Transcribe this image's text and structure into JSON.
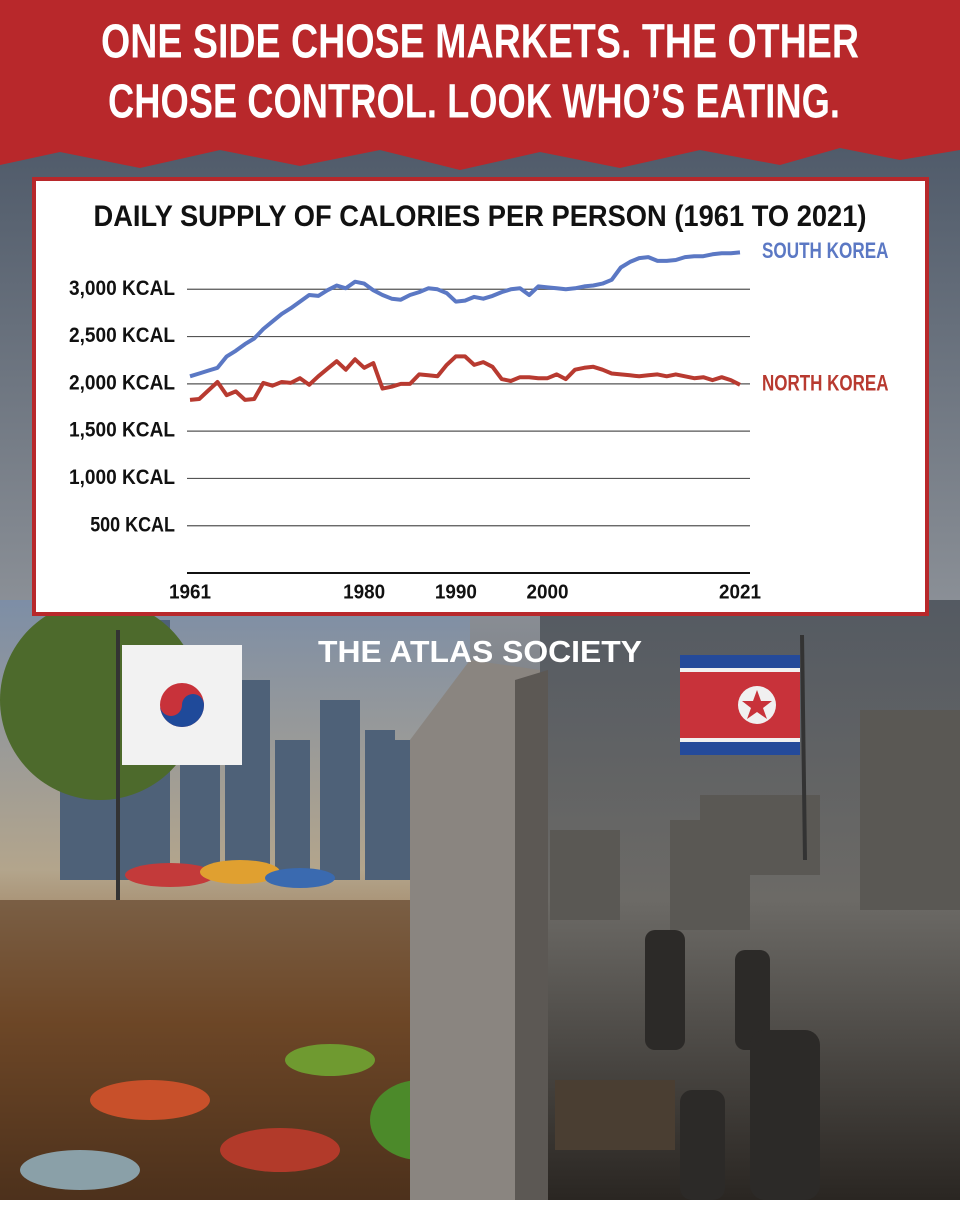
{
  "headline": [
    "ONE SIDE CHOSE MARKETS. THE OTHER",
    "CHOSE CONTROL. LOOK WHO’S EATING."
  ],
  "brand": "THE ATLAS SOCIETY",
  "chart_data": {
    "type": "line",
    "title": "DAILY SUPPLY OF CALORIES PER PERSON (1961 TO 2021)",
    "x": [
      1961,
      1962,
      1963,
      1964,
      1965,
      1966,
      1967,
      1968,
      1969,
      1970,
      1971,
      1972,
      1973,
      1974,
      1975,
      1976,
      1977,
      1978,
      1979,
      1980,
      1981,
      1982,
      1983,
      1984,
      1985,
      1986,
      1987,
      1988,
      1989,
      1990,
      1991,
      1992,
      1993,
      1994,
      1995,
      1996,
      1997,
      1998,
      1999,
      2000,
      2001,
      2002,
      2003,
      2004,
      2005,
      2006,
      2007,
      2008,
      2009,
      2010,
      2011,
      2012,
      2013,
      2014,
      2015,
      2016,
      2017,
      2018,
      2019,
      2020,
      2021
    ],
    "series": [
      {
        "name": "SOUTH KOREA",
        "color": "#5b78c4",
        "values": [
          2080,
          2110,
          2140,
          2170,
          2290,
          2350,
          2420,
          2480,
          2580,
          2660,
          2740,
          2800,
          2870,
          2940,
          2930,
          2990,
          3040,
          3010,
          3080,
          3060,
          2990,
          2940,
          2900,
          2890,
          2940,
          2970,
          3010,
          3000,
          2960,
          2870,
          2880,
          2920,
          2900,
          2930,
          2970,
          3000,
          3010,
          2940,
          3030,
          3020,
          3010,
          3000,
          3010,
          3030,
          3040,
          3060,
          3100,
          3230,
          3290,
          3330,
          3340,
          3300,
          3300,
          3310,
          3340,
          3350,
          3350,
          3370,
          3380,
          3380,
          3390
        ]
      },
      {
        "name": "NORTH KOREA",
        "color": "#b83a30",
        "values": [
          1830,
          1840,
          1930,
          2020,
          1880,
          1920,
          1830,
          1840,
          2010,
          1980,
          2020,
          2010,
          2060,
          1990,
          2080,
          2160,
          2240,
          2150,
          2260,
          2170,
          2220,
          1950,
          1970,
          2000,
          2000,
          2100,
          2090,
          2080,
          2200,
          2290,
          2290,
          2200,
          2230,
          2180,
          2050,
          2030,
          2070,
          2070,
          2060,
          2060,
          2100,
          2050,
          2150,
          2170,
          2180,
          2150,
          2110,
          2100,
          2090,
          2080,
          2090,
          2100,
          2080,
          2100,
          2080,
          2060,
          2070,
          2040,
          2070,
          2040,
          1990
        ]
      }
    ],
    "xlim": [
      1961,
      2021
    ],
    "xticks": [
      1961,
      1980,
      1990,
      2000,
      2021
    ],
    "ylim": [
      0,
      3500
    ],
    "yticks": [
      {
        "value": 500,
        "label": "500 KCAL"
      },
      {
        "value": 1000,
        "label": "1,000 KCAL"
      },
      {
        "value": 1500,
        "label": "1,500 KCAL"
      },
      {
        "value": 2000,
        "label": "2,000 KCAL"
      },
      {
        "value": 2500,
        "label": "2,500 KCAL"
      },
      {
        "value": 3000,
        "label": "3,000 KCAL"
      }
    ],
    "grid": true
  }
}
